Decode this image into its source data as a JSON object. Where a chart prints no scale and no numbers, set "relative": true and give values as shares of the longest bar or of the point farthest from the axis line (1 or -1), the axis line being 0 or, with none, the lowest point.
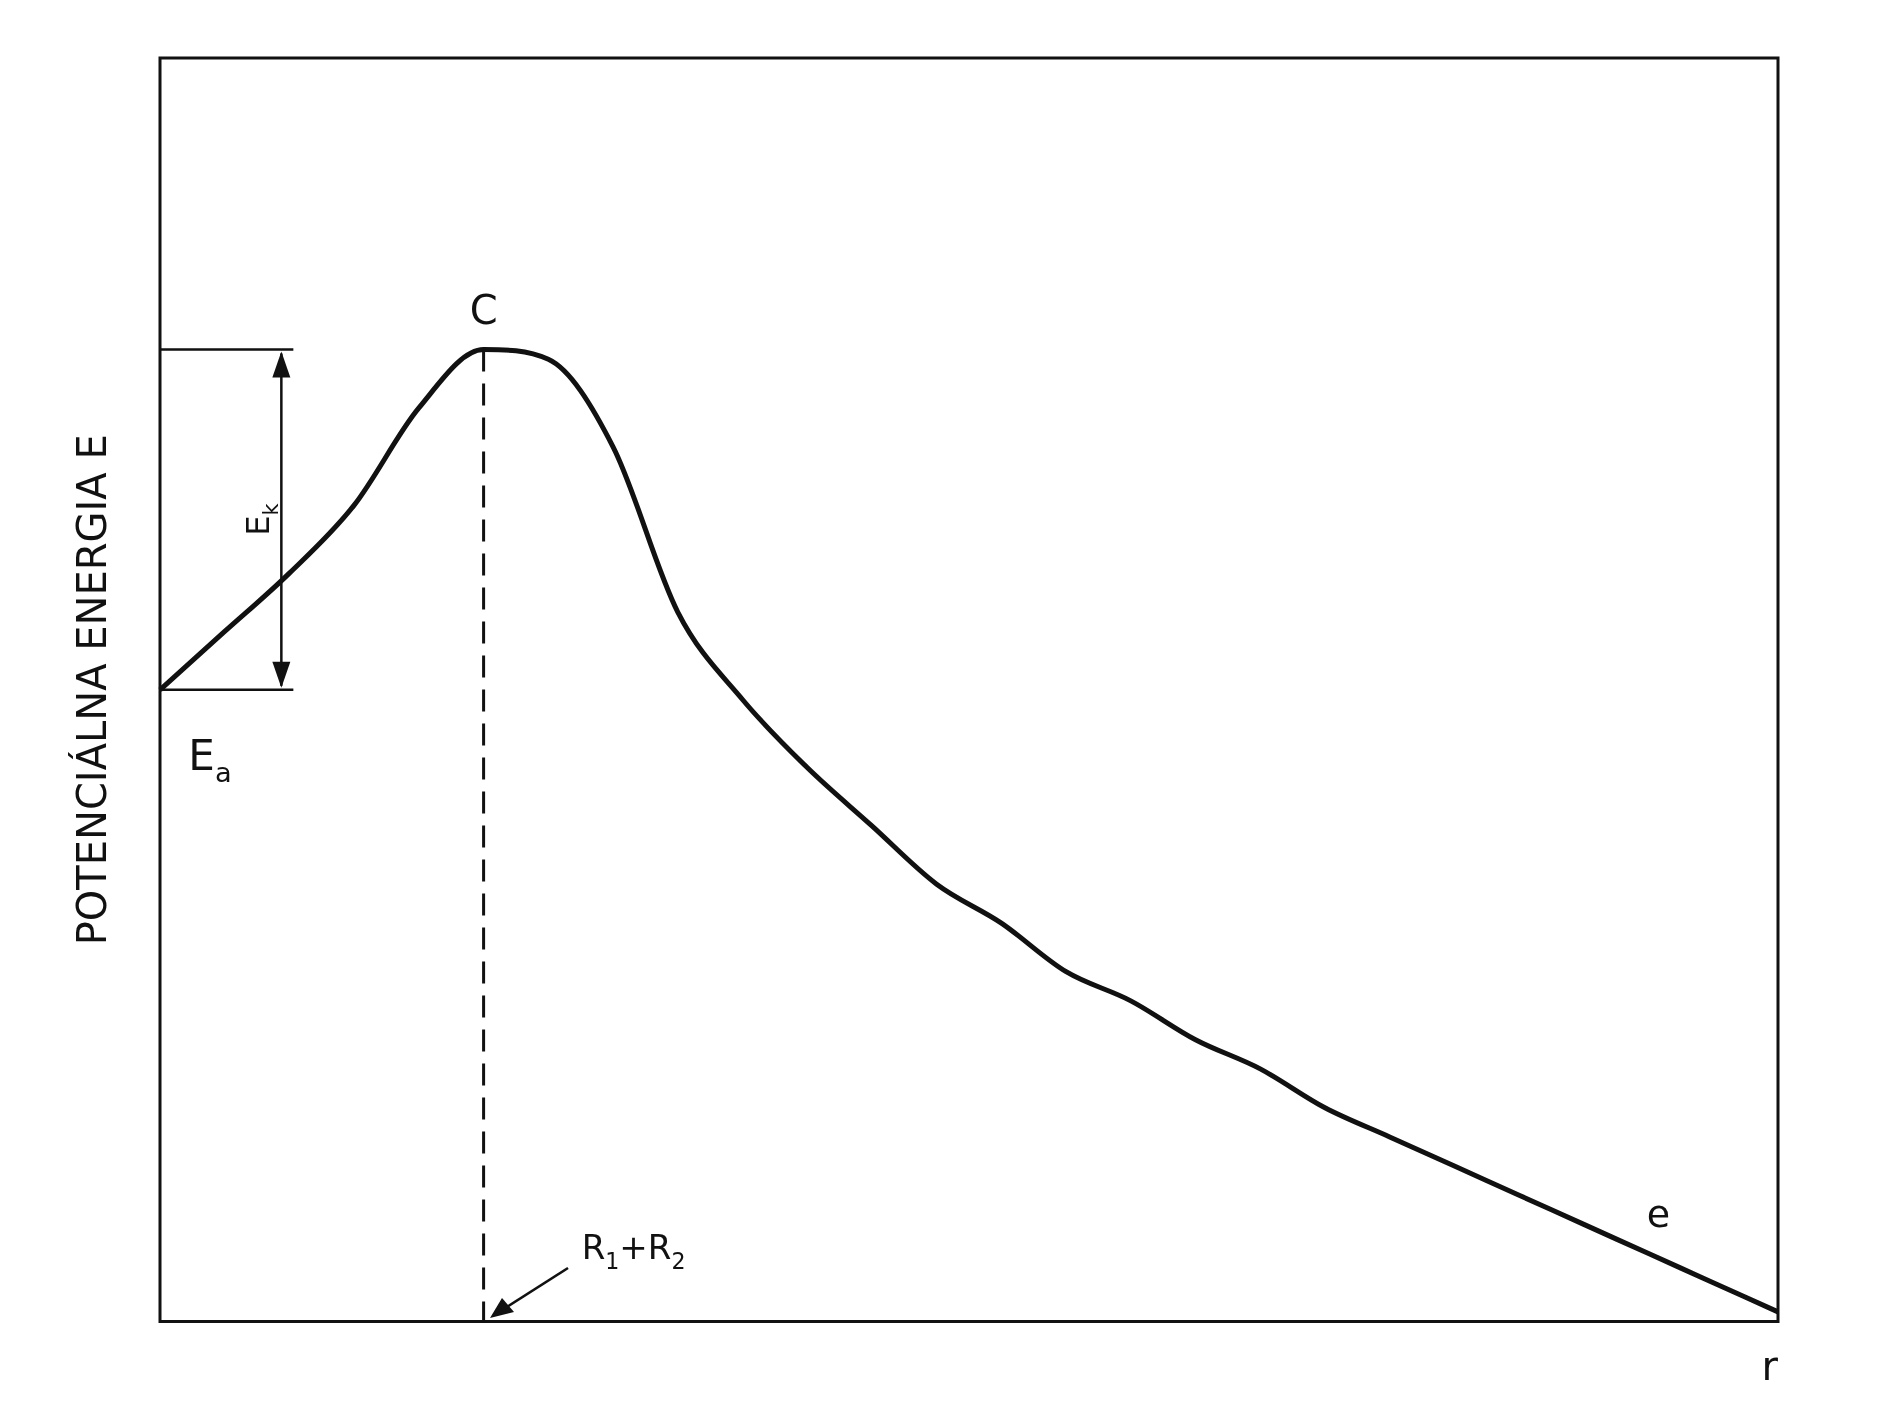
{
  "chart_data": {
    "type": "line",
    "relative": true,
    "ylabel": "POTENCIÁLNA ENERGIA E",
    "xlabel": "r",
    "categories": [
      null,
      null,
      null,
      null,
      null,
      null,
      null,
      null,
      null,
      null,
      null,
      null,
      null,
      null,
      null,
      null,
      null,
      null,
      null,
      null,
      null,
      null,
      null,
      null,
      null,
      null
    ],
    "series": [
      {
        "color": "#111111",
        "values": [
          0.65,
          0.71,
          0.77,
          0.84,
          0.94,
          1.0,
          0.99,
          0.9,
          0.73,
          0.64,
          0.57,
          0.51,
          0.45,
          0.41,
          0.36,
          0.33,
          0.29,
          0.26,
          0.22,
          0.19,
          0.16,
          0.13,
          0.1,
          0.07,
          0.04,
          0.01
        ]
      }
    ],
    "marker": "none",
    "grid": false,
    "legend": false,
    "annotations": [
      "C",
      "E$_{k}$",
      "E$_{a}$",
      "e",
      "R$_{1}$+R$_{2}$"
    ]
  }
}
